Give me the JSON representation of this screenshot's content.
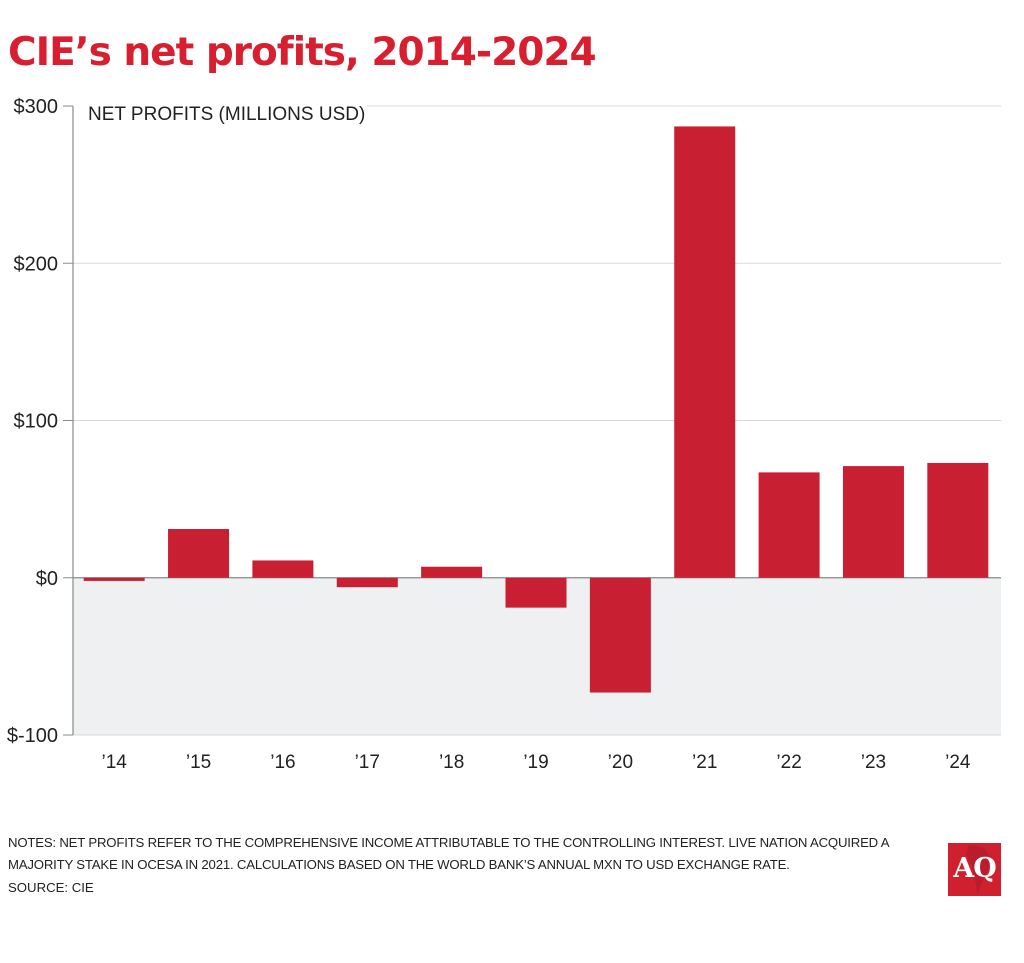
{
  "header": {
    "title": "CIE’s net profits, 2014-2024"
  },
  "chart_data": {
    "type": "bar",
    "title": "CIE’s net profits, 2014-2024",
    "ylabel": "NET PROFITS (MILLIONS USD)",
    "xlabel": "",
    "categories": [
      "’14",
      "’15",
      "’16",
      "’17",
      "’18",
      "’19",
      "’20",
      "’21",
      "’22",
      "’23",
      "’24"
    ],
    "values": [
      -2,
      31,
      11,
      -6,
      7,
      -19,
      -73,
      287,
      67,
      71,
      73
    ],
    "ylim": [
      -100,
      300
    ],
    "yticks": [
      300,
      200,
      100,
      0,
      -100
    ],
    "ytick_labels": [
      "$300",
      "$200",
      "$100",
      "$0",
      "$-100"
    ],
    "grid": true,
    "negative_region_shaded": true,
    "colors": {
      "bar": "#c81f32",
      "negative_bg": "#eff0f1",
      "grid": "#d8d8d8",
      "axis": "#8a8a8a"
    }
  },
  "footer": {
    "notes": "NOTES: NET PROFITS REFER TO THE COMPREHENSIVE INCOME ATTRIBUTABLE TO THE CONTROLLING INTEREST. LIVE NATION ACQUIRED A MAJORITY STAKE IN OCESA IN 2021. CALCULATIONS BASED ON THE WORLD BANK’S ANNUAL MXN TO USD EXCHANGE RATE.",
    "source": "SOURCE: CIE",
    "logo_text": "AQ"
  }
}
